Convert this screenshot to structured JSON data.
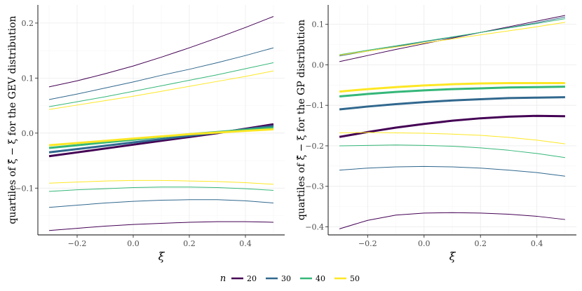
{
  "colors": {
    "20": "#440154",
    "30": "#31688e",
    "40": "#35b779",
    "50": "#fde725"
  },
  "legend": {
    "title": "n",
    "entries": [
      {
        "label": "20",
        "key": "20"
      },
      {
        "label": "30",
        "key": "30"
      },
      {
        "label": "40",
        "key": "40"
      },
      {
        "label": "50",
        "key": "50"
      }
    ]
  },
  "chart_data": [
    {
      "type": "line",
      "panel": "left",
      "title": "",
      "xlabel": "ξ",
      "ylabel": "quartiles of ξ̂ − ξ for the GEV distribution",
      "xlim": [
        -0.34,
        0.54
      ],
      "ylim": [
        -0.185,
        0.233
      ],
      "xticks": [
        -0.2,
        0.0,
        0.2,
        0.4
      ],
      "xtick_labels": [
        "−0.2",
        "0.0",
        "0.2",
        "0.4"
      ],
      "yticks": [
        -0.1,
        0.0,
        0.1,
        0.2
      ],
      "ytick_labels": [
        "−0.1",
        "0.0",
        "0.1",
        "0.2"
      ],
      "x": [
        -0.3,
        -0.2,
        -0.1,
        0.0,
        0.1,
        0.2,
        0.3,
        0.4,
        0.5
      ],
      "series": [
        {
          "n": "20",
          "quartile": "upper",
          "values": [
            0.084,
            0.095,
            0.108,
            0.122,
            0.138,
            0.155,
            0.173,
            0.192,
            0.212
          ]
        },
        {
          "n": "30",
          "quartile": "upper",
          "values": [
            0.061,
            0.071,
            0.082,
            0.093,
            0.105,
            0.116,
            0.128,
            0.141,
            0.155
          ]
        },
        {
          "n": "40",
          "quartile": "upper",
          "values": [
            0.048,
            0.057,
            0.066,
            0.076,
            0.086,
            0.096,
            0.106,
            0.117,
            0.128
          ]
        },
        {
          "n": "50",
          "quartile": "upper",
          "values": [
            0.043,
            0.051,
            0.059,
            0.067,
            0.076,
            0.085,
            0.094,
            0.103,
            0.113
          ]
        },
        {
          "n": "20",
          "quartile": "median",
          "values": [
            -0.042,
            -0.035,
            -0.028,
            -0.021,
            -0.014,
            -0.007,
            0.0,
            0.008,
            0.016
          ]
        },
        {
          "n": "30",
          "quartile": "median",
          "values": [
            -0.035,
            -0.029,
            -0.023,
            -0.017,
            -0.011,
            -0.005,
            0.001,
            0.007,
            0.013
          ]
        },
        {
          "n": "40",
          "quartile": "median",
          "values": [
            -0.027,
            -0.022,
            -0.017,
            -0.012,
            -0.007,
            -0.002,
            0.002,
            0.006,
            0.01
          ]
        },
        {
          "n": "50",
          "quartile": "median",
          "values": [
            -0.022,
            -0.018,
            -0.014,
            -0.01,
            -0.006,
            -0.002,
            0.001,
            0.004,
            0.007
          ]
        },
        {
          "n": "50",
          "quartile": "lower",
          "values": [
            -0.091,
            -0.089,
            -0.087,
            -0.086,
            -0.086,
            -0.087,
            -0.088,
            -0.09,
            -0.093
          ]
        },
        {
          "n": "40",
          "quartile": "lower",
          "values": [
            -0.106,
            -0.103,
            -0.101,
            -0.099,
            -0.098,
            -0.098,
            -0.099,
            -0.101,
            -0.104
          ]
        },
        {
          "n": "30",
          "quartile": "lower",
          "values": [
            -0.135,
            -0.131,
            -0.127,
            -0.124,
            -0.122,
            -0.121,
            -0.121,
            -0.123,
            -0.127
          ]
        },
        {
          "n": "20",
          "quartile": "lower",
          "values": [
            -0.177,
            -0.173,
            -0.169,
            -0.166,
            -0.164,
            -0.162,
            -0.161,
            -0.161,
            -0.162
          ]
        }
      ]
    },
    {
      "type": "line",
      "panel": "right",
      "title": "",
      "xlabel": "ξ",
      "ylabel": "quartiles of ξ̂ − ξ for the GP distribution",
      "xlim": [
        -0.34,
        0.54
      ],
      "ylim": [
        -0.42,
        0.148
      ],
      "xticks": [
        -0.2,
        0.0,
        0.2,
        0.4
      ],
      "xtick_labels": [
        "−0.2",
        "0.0",
        "0.2",
        "0.4"
      ],
      "yticks": [
        -0.4,
        -0.3,
        -0.2,
        -0.1,
        0.0,
        0.1
      ],
      "ytick_labels": [
        "−0.4",
        "−0.3",
        "−0.2",
        "−0.1",
        "0.0",
        "0.1"
      ],
      "x": [
        -0.3,
        -0.2,
        -0.1,
        0.0,
        0.1,
        0.2,
        0.3,
        0.4,
        0.5
      ],
      "series": [
        {
          "n": "20",
          "quartile": "upper",
          "values": [
            0.008,
            0.023,
            0.038,
            0.052,
            0.066,
            0.08,
            0.094,
            0.108,
            0.122
          ]
        },
        {
          "n": "30",
          "quartile": "upper",
          "values": [
            0.022,
            0.034,
            0.045,
            0.057,
            0.068,
            0.08,
            0.092,
            0.104,
            0.118
          ]
        },
        {
          "n": "40",
          "quartile": "upper",
          "values": [
            0.025,
            0.036,
            0.047,
            0.058,
            0.069,
            0.08,
            0.091,
            0.102,
            0.114
          ]
        },
        {
          "n": "50",
          "quartile": "upper",
          "values": [
            0.024,
            0.034,
            0.044,
            0.054,
            0.064,
            0.074,
            0.084,
            0.094,
            0.105
          ]
        },
        {
          "n": "50",
          "quartile": "median",
          "values": [
            -0.066,
            -0.06,
            -0.055,
            -0.051,
            -0.048,
            -0.046,
            -0.045,
            -0.045,
            -0.045
          ]
        },
        {
          "n": "40",
          "quartile": "median",
          "values": [
            -0.078,
            -0.072,
            -0.067,
            -0.063,
            -0.06,
            -0.058,
            -0.056,
            -0.055,
            -0.054
          ]
        },
        {
          "n": "30",
          "quartile": "median",
          "values": [
            -0.11,
            -0.103,
            -0.097,
            -0.092,
            -0.088,
            -0.085,
            -0.082,
            -0.081,
            -0.08
          ]
        },
        {
          "n": "20",
          "quartile": "median",
          "values": [
            -0.178,
            -0.166,
            -0.155,
            -0.146,
            -0.138,
            -0.132,
            -0.128,
            -0.126,
            -0.127
          ]
        },
        {
          "n": "50",
          "quartile": "lower",
          "values": [
            -0.168,
            -0.167,
            -0.168,
            -0.169,
            -0.171,
            -0.174,
            -0.179,
            -0.186,
            -0.195
          ]
        },
        {
          "n": "40",
          "quartile": "lower",
          "values": [
            -0.2,
            -0.199,
            -0.198,
            -0.199,
            -0.201,
            -0.205,
            -0.211,
            -0.219,
            -0.229
          ]
        },
        {
          "n": "30",
          "quartile": "lower",
          "values": [
            -0.26,
            -0.255,
            -0.252,
            -0.251,
            -0.252,
            -0.255,
            -0.26,
            -0.266,
            -0.275
          ]
        },
        {
          "n": "20",
          "quartile": "lower",
          "values": [
            -0.405,
            -0.384,
            -0.371,
            -0.366,
            -0.365,
            -0.366,
            -0.369,
            -0.374,
            -0.382
          ]
        }
      ]
    }
  ]
}
